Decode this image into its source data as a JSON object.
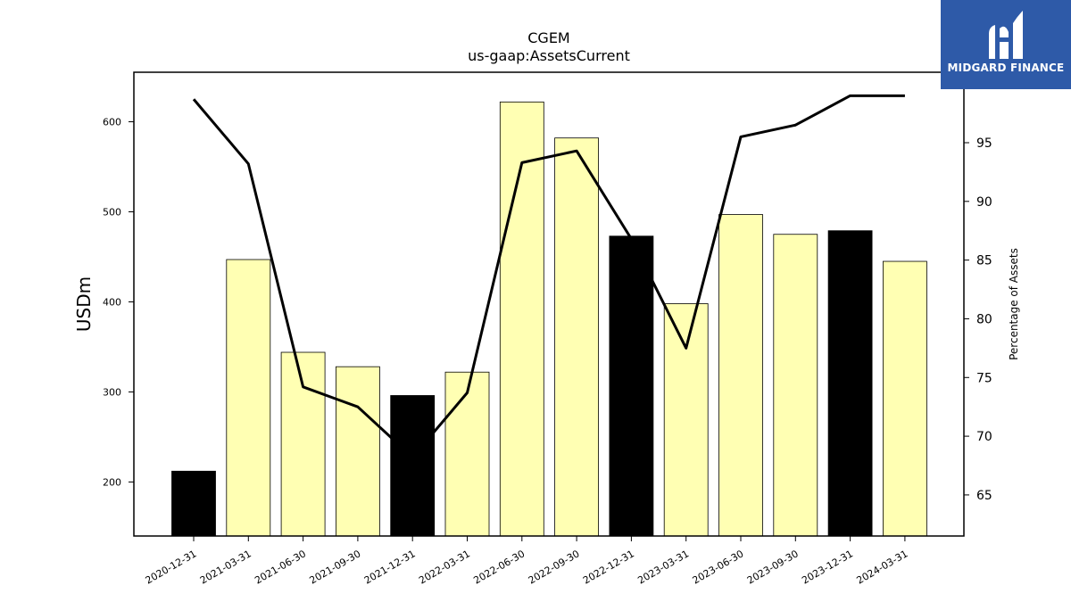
{
  "chart_data": {
    "type": "bar+line",
    "title": "CGEM",
    "subtitle": "us-gaap:AssetsCurrent",
    "ylabel": "USDm",
    "y2label": "Percentage of Assets",
    "categories": [
      "2020-12-31",
      "2021-03-31",
      "2021-06-30",
      "2021-09-30",
      "2021-12-31",
      "2022-03-31",
      "2022-06-30",
      "2022-09-30",
      "2022-12-31",
      "2023-03-31",
      "2023-06-30",
      "2023-09-30",
      "2023-12-31",
      "2024-03-31"
    ],
    "bars": {
      "values": [
        212,
        447,
        344,
        328,
        296,
        322,
        622,
        582,
        473,
        398,
        497,
        475,
        479,
        445
      ],
      "highlighted": [
        true,
        false,
        false,
        false,
        true,
        false,
        false,
        false,
        true,
        false,
        false,
        false,
        true,
        false
      ]
    },
    "line": {
      "values": [
        98.7,
        93.2,
        74.2,
        72.5,
        68.2,
        73.7,
        93.3,
        94.3,
        86.8,
        77.5,
        95.5,
        96.5,
        99.0,
        99.0
      ]
    },
    "ylim": [
      140,
      655
    ],
    "y2lim": [
      61.5,
      101
    ],
    "yticks": [
      200,
      300,
      400,
      500,
      600
    ],
    "y2ticks": [
      65,
      70,
      75,
      80,
      85,
      90,
      95
    ],
    "colors": {
      "bar": "#ffffb3",
      "bar_highlight": "#000000",
      "line": "#000000"
    }
  },
  "logo": {
    "text": "MIDGARD FINANCE"
  }
}
